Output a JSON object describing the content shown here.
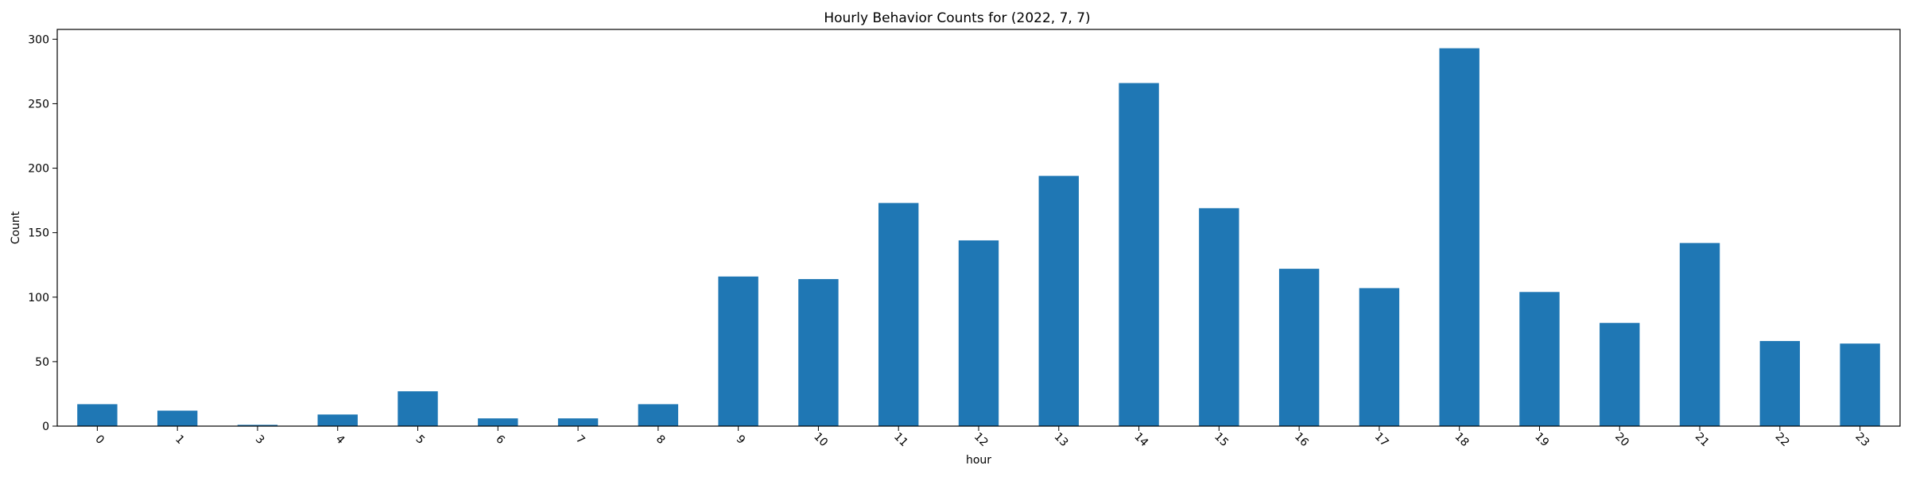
{
  "chart_data": {
    "type": "bar",
    "title": "Hourly Behavior Counts for (2022, 7, 7)",
    "xlabel": "hour",
    "ylabel": "Count",
    "categories": [
      "0",
      "1",
      "3",
      "4",
      "5",
      "6",
      "7",
      "8",
      "9",
      "10",
      "11",
      "12",
      "13",
      "14",
      "15",
      "16",
      "17",
      "18",
      "19",
      "20",
      "21",
      "22",
      "23"
    ],
    "values": [
      17,
      12,
      1,
      9,
      27,
      6,
      6,
      17,
      116,
      114,
      173,
      144,
      194,
      266,
      169,
      122,
      107,
      293,
      104,
      80,
      142,
      66,
      64
    ],
    "ylim": [
      0,
      307.6
    ],
    "yticks": [
      0,
      50,
      100,
      150,
      200,
      250,
      300
    ],
    "bar_color": "#1f77b4",
    "grid": false,
    "legend": "none",
    "xtick_rotation": "45"
  }
}
